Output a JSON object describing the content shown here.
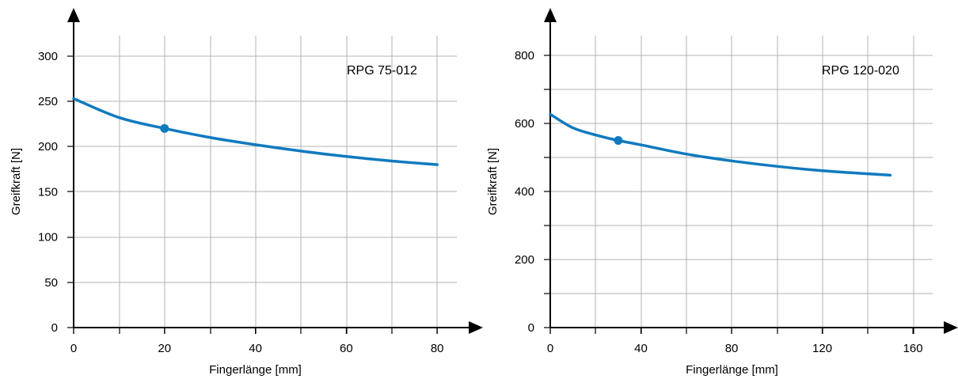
{
  "chart_data": [
    {
      "type": "line",
      "title": "",
      "annotation": "RPG 75-012",
      "xlabel": "Fingerlänge [mm]",
      "ylabel": "Greifkraft [N]",
      "xlim": [
        0,
        80
      ],
      "ylim": [
        0,
        300
      ],
      "xticks": [
        0,
        20,
        40,
        60,
        80
      ],
      "yticks": [
        0,
        50,
        100,
        150,
        200,
        250,
        300
      ],
      "grid": true,
      "series": [
        {
          "x": [
            0,
            10,
            20,
            30,
            40,
            50,
            60,
            70,
            80
          ],
          "values": [
            253,
            232,
            220,
            210,
            202,
            195,
            189,
            184,
            180
          ]
        }
      ],
      "marker": {
        "x": 20,
        "y": 220
      },
      "color": "#0f7abf"
    },
    {
      "type": "line",
      "title": "",
      "annotation": "RPG 120-020",
      "xlabel": "Fingerlänge [mm]",
      "ylabel": "Greifkraft [N]",
      "xlim": [
        0,
        160
      ],
      "ylim": [
        0,
        800
      ],
      "xticks": [
        0,
        40,
        80,
        120,
        160
      ],
      "yticks": [
        0,
        200,
        400,
        600,
        800
      ],
      "grid": true,
      "series": [
        {
          "x": [
            0,
            10,
            20,
            30,
            40,
            60,
            80,
            100,
            120,
            140,
            150
          ],
          "values": [
            627,
            587,
            566,
            550,
            537,
            510,
            490,
            474,
            461,
            452,
            448
          ]
        }
      ],
      "marker": {
        "x": 30,
        "y": 550
      },
      "color": "#0f7abf"
    }
  ]
}
